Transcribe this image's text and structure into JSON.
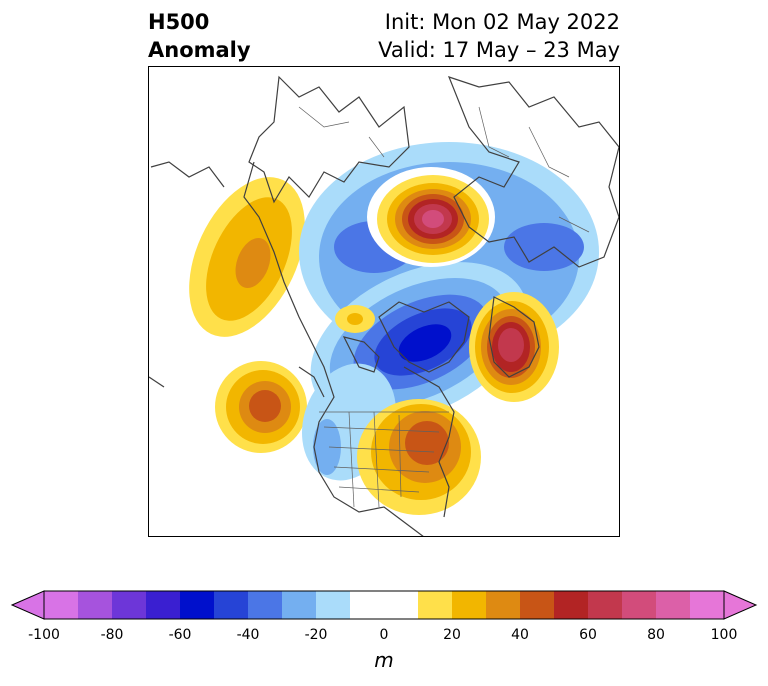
{
  "title": {
    "left_line1": "H500",
    "left_line2": "Anomaly",
    "right_line1": "Init: Mon 02 May 2022",
    "right_line2": "Valid: 17 May – 23 May"
  },
  "colorbar": {
    "unit": "m",
    "ticks": [
      "-100",
      "-80",
      "-60",
      "-40",
      "-20",
      "0",
      "20",
      "40",
      "60",
      "80",
      "100"
    ],
    "colors": [
      "#d873e6",
      "#a653dd",
      "#6d36d8",
      "#3a1fd1",
      "#0010cc",
      "#2644d6",
      "#4b76e6",
      "#74aff0",
      "#aadcfa",
      "#ffffff",
      "#ffffff",
      "#ffe04a",
      "#f2b600",
      "#de8a12",
      "#c85516",
      "#b22424",
      "#c2384d",
      "#d24c7b",
      "#dc60a8",
      "#e676d8"
    ],
    "extend": "both"
  },
  "map": {
    "projection": "north-polar-stereographic",
    "variable": "500 hPa geopotential height anomaly",
    "anomaly_centers": [
      {
        "region": "North Pole / Arctic",
        "sign": "positive",
        "peak_m": 85
      },
      {
        "region": "Gulf of Alaska / Bering",
        "sign": "positive",
        "peak_m": 45
      },
      {
        "region": "Scandinavia / North Atlantic",
        "sign": "positive",
        "peak_m": 85
      },
      {
        "region": "Central Pacific",
        "sign": "positive",
        "peak_m": 50
      },
      {
        "region": "Eastern United States",
        "sign": "positive",
        "peak_m": 55
      },
      {
        "region": "Greenland / Baffin",
        "sign": "negative",
        "peak_m": -60
      },
      {
        "region": "Siberian Arctic",
        "sign": "negative",
        "peak_m": -40
      },
      {
        "region": "Beaufort Sea",
        "sign": "positive",
        "peak_m": 25
      }
    ]
  }
}
